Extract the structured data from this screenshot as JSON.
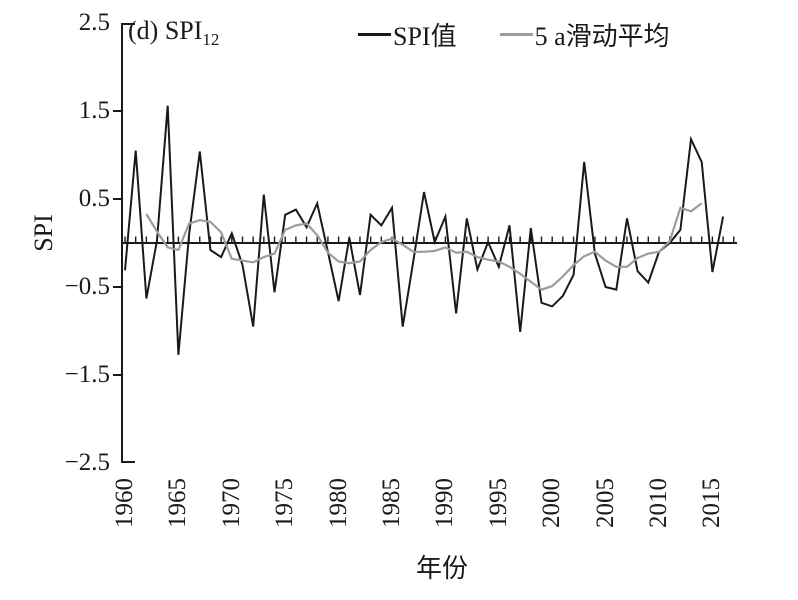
{
  "title": {
    "prefix": "(d) SPI",
    "subscript": "12"
  },
  "legend": {
    "items": [
      {
        "label": "SPI值",
        "color": "#1a1a1a"
      },
      {
        "label": "5 a滑动平均",
        "color": "#9c9c9c"
      }
    ]
  },
  "axes": {
    "ylabel": "SPI",
    "xlabel": "年份",
    "yticks": [
      "2.5",
      "1.5",
      "0.5",
      "−0.5",
      "−1.5",
      "−2.5"
    ],
    "ytick_values": [
      2.5,
      1.5,
      0.5,
      -0.5,
      -1.5,
      -2.5
    ],
    "xticks": [
      "1960",
      "1965",
      "1970",
      "1975",
      "1980",
      "1985",
      "1990",
      "1995",
      "2000",
      "2005",
      "2010",
      "2015"
    ],
    "xtick_values": [
      1960,
      1965,
      1970,
      1975,
      1980,
      1985,
      1990,
      1995,
      2000,
      2005,
      2010,
      2015
    ]
  },
  "chart_data": {
    "type": "line",
    "title": "(d) SPI12",
    "xlabel": "年份",
    "ylabel": "SPI",
    "xlim": [
      1959.7,
      2017.3
    ],
    "ylim": [
      -2.5,
      2.5
    ],
    "grid": false,
    "legend_position": "top",
    "zero_line": true,
    "yearly_ticks_on_zero_line": true,
    "x": [
      1960,
      1961,
      1962,
      1963,
      1964,
      1965,
      1966,
      1967,
      1968,
      1969,
      1970,
      1971,
      1972,
      1973,
      1974,
      1975,
      1976,
      1977,
      1978,
      1979,
      1980,
      1981,
      1982,
      1983,
      1984,
      1985,
      1986,
      1987,
      1988,
      1989,
      1990,
      1991,
      1992,
      1993,
      1994,
      1995,
      1996,
      1997,
      1998,
      1999,
      2000,
      2001,
      2002,
      2003,
      2004,
      2005,
      2006,
      2007,
      2008,
      2009,
      2010,
      2011,
      2012,
      2013,
      2014,
      2015,
      2016
    ],
    "series": [
      {
        "name": "SPI值",
        "color": "#1a1a1a",
        "width": 2,
        "values": [
          -0.31,
          1.05,
          -0.63,
          0.03,
          1.56,
          -1.27,
          0.1,
          1.04,
          -0.08,
          -0.16,
          0.11,
          -0.25,
          -0.95,
          0.55,
          -0.56,
          0.32,
          0.38,
          0.18,
          0.45,
          -0.1,
          -0.66,
          0.06,
          -0.59,
          0.32,
          0.2,
          0.4,
          -0.95,
          -0.2,
          0.58,
          0.01,
          0.3,
          -0.8,
          0.28,
          -0.3,
          0.01,
          -0.27,
          0.2,
          -1.01,
          0.17,
          -0.68,
          -0.72,
          -0.6,
          -0.36,
          0.92,
          -0.12,
          -0.5,
          -0.53,
          0.28,
          -0.32,
          -0.45,
          -0.1,
          0.0,
          0.15,
          1.18,
          0.92,
          -0.33,
          0.3
        ]
      },
      {
        "name": "5 a滑动平均",
        "color": "#9c9c9c",
        "width": 2.2,
        "values": [
          null,
          null,
          0.33,
          0.13,
          -0.05,
          -0.08,
          0.22,
          0.26,
          0.24,
          0.12,
          -0.18,
          -0.2,
          -0.22,
          -0.16,
          -0.12,
          0.15,
          0.2,
          0.22,
          0.09,
          -0.11,
          -0.21,
          -0.23,
          -0.21,
          -0.08,
          0.01,
          0.05,
          -0.02,
          -0.1,
          -0.1,
          -0.09,
          -0.05,
          -0.11,
          -0.1,
          -0.16,
          -0.19,
          -0.21,
          -0.27,
          -0.35,
          -0.44,
          -0.53,
          -0.49,
          -0.38,
          -0.25,
          -0.15,
          -0.1,
          -0.2,
          -0.27,
          -0.27,
          -0.17,
          -0.12,
          -0.1,
          0.02,
          0.4,
          0.36,
          0.45,
          null,
          null
        ]
      }
    ]
  }
}
